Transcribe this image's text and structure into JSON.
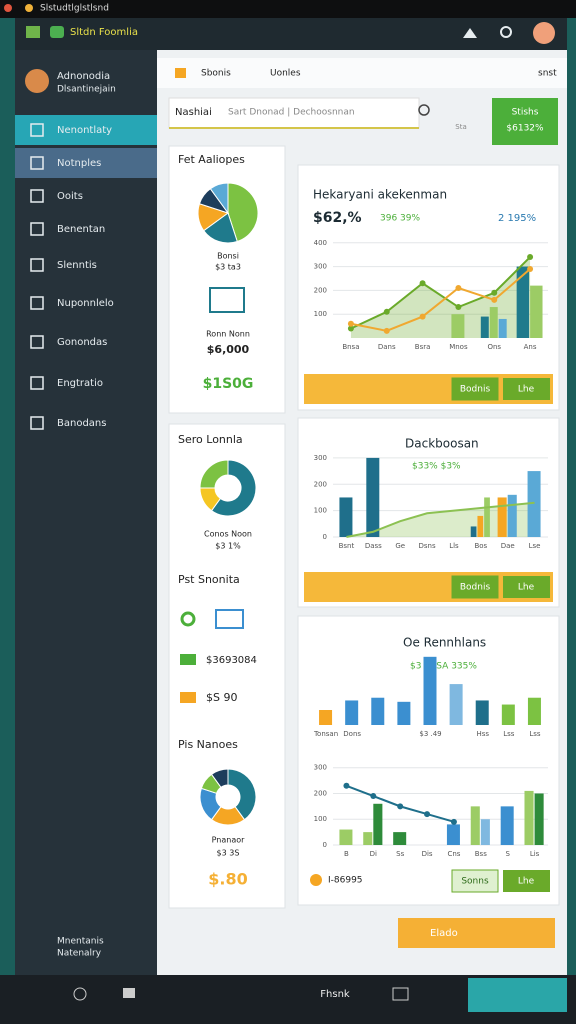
{
  "window": {
    "title": "Slstudtlglstlsnd"
  },
  "header": {
    "app_name": "Sltdn Foomlia"
  },
  "sidebar": {
    "profile_name": "Adnonodia",
    "profile_role": "Dlsantinejain",
    "items": [
      "Nenontlaty",
      "Notnples",
      "Ooits",
      "Benentan",
      "Slenntis",
      "Nuponnlelo",
      "Gonondas",
      "Engtratio",
      "Banodans"
    ],
    "footer": [
      "Mnentanis",
      "Natenalry"
    ]
  },
  "toolbar": {
    "tabs": [
      "Sbonis",
      "Uonles"
    ],
    "right": "snst"
  },
  "search": {
    "label": "Nashiai",
    "placeholder": "Sart Dnonad | Dechoosnnan",
    "icon_label": "Sta",
    "button": [
      "Stishs",
      "$6132%"
    ]
  },
  "summary_card": {
    "title": "Fet Aaliopes",
    "pie": {
      "values": [
        45,
        20,
        15,
        10,
        10
      ],
      "colors": [
        "#7cc242",
        "#1f7a8c",
        "#f5a623",
        "#1d3d5c",
        "#5aa9d6"
      ]
    },
    "pie_label": "Bonsi",
    "pie_value": "$3 ta3",
    "item_label": "Ronn Nonn",
    "item_value": "$6,000",
    "total": "$1S0G"
  },
  "detail_card": {
    "title": "Sero Lonnla",
    "pie": {
      "values": [
        60,
        15,
        25
      ],
      "colors": [
        "#1f7a8c",
        "#f5c623",
        "#7cc242"
      ]
    },
    "pie_label": "Conos Noon",
    "pie_value": "$3 1%",
    "list_title": "Pst Snonita",
    "rows": [
      "$3693084",
      "$S 90"
    ],
    "second_title": "Pis Nanoes",
    "second_pie": {
      "values": [
        40,
        20,
        20,
        10,
        10
      ],
      "colors": [
        "#1f7a8c",
        "#f5a623",
        "#3b8fd0",
        "#7cc242",
        "#1d3d5c"
      ]
    },
    "second_label": "Pnanaor",
    "second_value": "$3 3S",
    "total": "$.80"
  },
  "charts": [
    {
      "title": "Hekaryani akekenman",
      "value": "$62,%",
      "delta": "396 39%",
      "badge": "2 195%",
      "ylim": [
        0,
        420
      ],
      "yticks": [
        100,
        200,
        300,
        400
      ],
      "categories": [
        "Bnsa",
        "Dans",
        "Bsra",
        "Mnos",
        "Ons",
        "Ans"
      ],
      "bars": [
        {
          "color": "#1f7a8c",
          "values": [
            null,
            null,
            null,
            null,
            90,
            300
          ]
        },
        {
          "color": "#9ccc65",
          "values": [
            null,
            null,
            null,
            100,
            130,
            220
          ]
        },
        {
          "color": "#5aa9d6",
          "values": [
            null,
            null,
            null,
            null,
            80,
            null
          ]
        }
      ],
      "lines": [
        {
          "color": "#6aaa2a",
          "area": true,
          "dots": true,
          "values": [
            40,
            110,
            230,
            130,
            190,
            340
          ]
        },
        {
          "color": "#f0a830",
          "dots": true,
          "values": [
            60,
            30,
            90,
            210,
            160,
            290
          ]
        }
      ],
      "buttons": [
        "Bodnis",
        "Lhe"
      ]
    },
    {
      "title": "Dackboosan",
      "subtitle": "$33% $3%",
      "ylim": [
        0,
        330
      ],
      "yticks": [
        0,
        100,
        200,
        300
      ],
      "categories": [
        "Bsnt",
        "Dass",
        "Ge",
        "Dsns",
        "Lls",
        "Bos",
        "Dae",
        "Lse"
      ],
      "bars": [
        {
          "color": "#1f6f8b",
          "values": [
            150,
            300,
            null,
            null,
            null,
            40,
            null,
            null
          ]
        },
        {
          "color": "#f5a623",
          "values": [
            null,
            null,
            null,
            null,
            null,
            80,
            150,
            null
          ]
        },
        {
          "color": "#9ccc65",
          "values": [
            null,
            null,
            null,
            null,
            null,
            150,
            null,
            null
          ]
        },
        {
          "color": "#5aa9d6",
          "values": [
            null,
            null,
            null,
            null,
            null,
            null,
            160,
            250
          ]
        }
      ],
      "lines": [
        {
          "color": "#8cc152",
          "area": true,
          "values": [
            0,
            20,
            60,
            90,
            100,
            110,
            120,
            130
          ]
        }
      ],
      "buttons": [
        "Bodnis",
        "Lhe"
      ]
    },
    {
      "title": "Oe Rennhlans",
      "subtitle": "$3 R3SA 335%",
      "ylim": [
        0,
        110
      ],
      "categories": [
        "Tonsan",
        "Dons",
        null,
        null,
        "$3 .49",
        null,
        "Hss",
        "Lss",
        "Lss"
      ],
      "bars": [
        {
          "color": "#f5a623",
          "values": [
            22,
            null,
            null,
            null,
            null,
            null,
            null,
            null,
            null
          ]
        },
        {
          "color": "#3b8fd0",
          "values": [
            null,
            36,
            40,
            34,
            100,
            null,
            null,
            null,
            null
          ]
        },
        {
          "color": "#7fb8e0",
          "values": [
            null,
            null,
            null,
            null,
            null,
            60,
            null,
            null,
            null
          ]
        },
        {
          "color": "#1f6f8b",
          "values": [
            null,
            null,
            null,
            null,
            null,
            null,
            36,
            null,
            null
          ]
        },
        {
          "color": "#7cc242",
          "values": [
            null,
            null,
            null,
            null,
            null,
            null,
            null,
            30,
            40
          ]
        }
      ]
    },
    {
      "ylim": [
        0,
        330
      ],
      "yticks": [
        0,
        100,
        200,
        300
      ],
      "categories": [
        "B",
        "Di",
        "Ss",
        "Dis",
        "Cns",
        "Bss",
        "S",
        "Lis"
      ],
      "bars": [
        {
          "color": "#9ccc65",
          "values": [
            60,
            50,
            null,
            null,
            null,
            150,
            null,
            210
          ]
        },
        {
          "color": "#2e8b3a",
          "values": [
            null,
            160,
            50,
            null,
            null,
            null,
            null,
            200
          ]
        },
        {
          "color": "#3b8fd0",
          "values": [
            null,
            null,
            null,
            null,
            80,
            null,
            150,
            null
          ]
        },
        {
          "color": "#7fb8e0",
          "values": [
            null,
            null,
            null,
            null,
            null,
            100,
            null,
            null
          ]
        }
      ],
      "lines": [
        {
          "color": "#1f6f8b",
          "dots": true,
          "values": [
            230,
            190,
            150,
            120,
            90,
            null,
            null,
            null
          ]
        }
      ],
      "note": "I-86995",
      "buttons": [
        "Sonns",
        "Lhe"
      ]
    }
  ],
  "footer_button": "Elado",
  "taskbar": {
    "label": "Fhsnk"
  }
}
